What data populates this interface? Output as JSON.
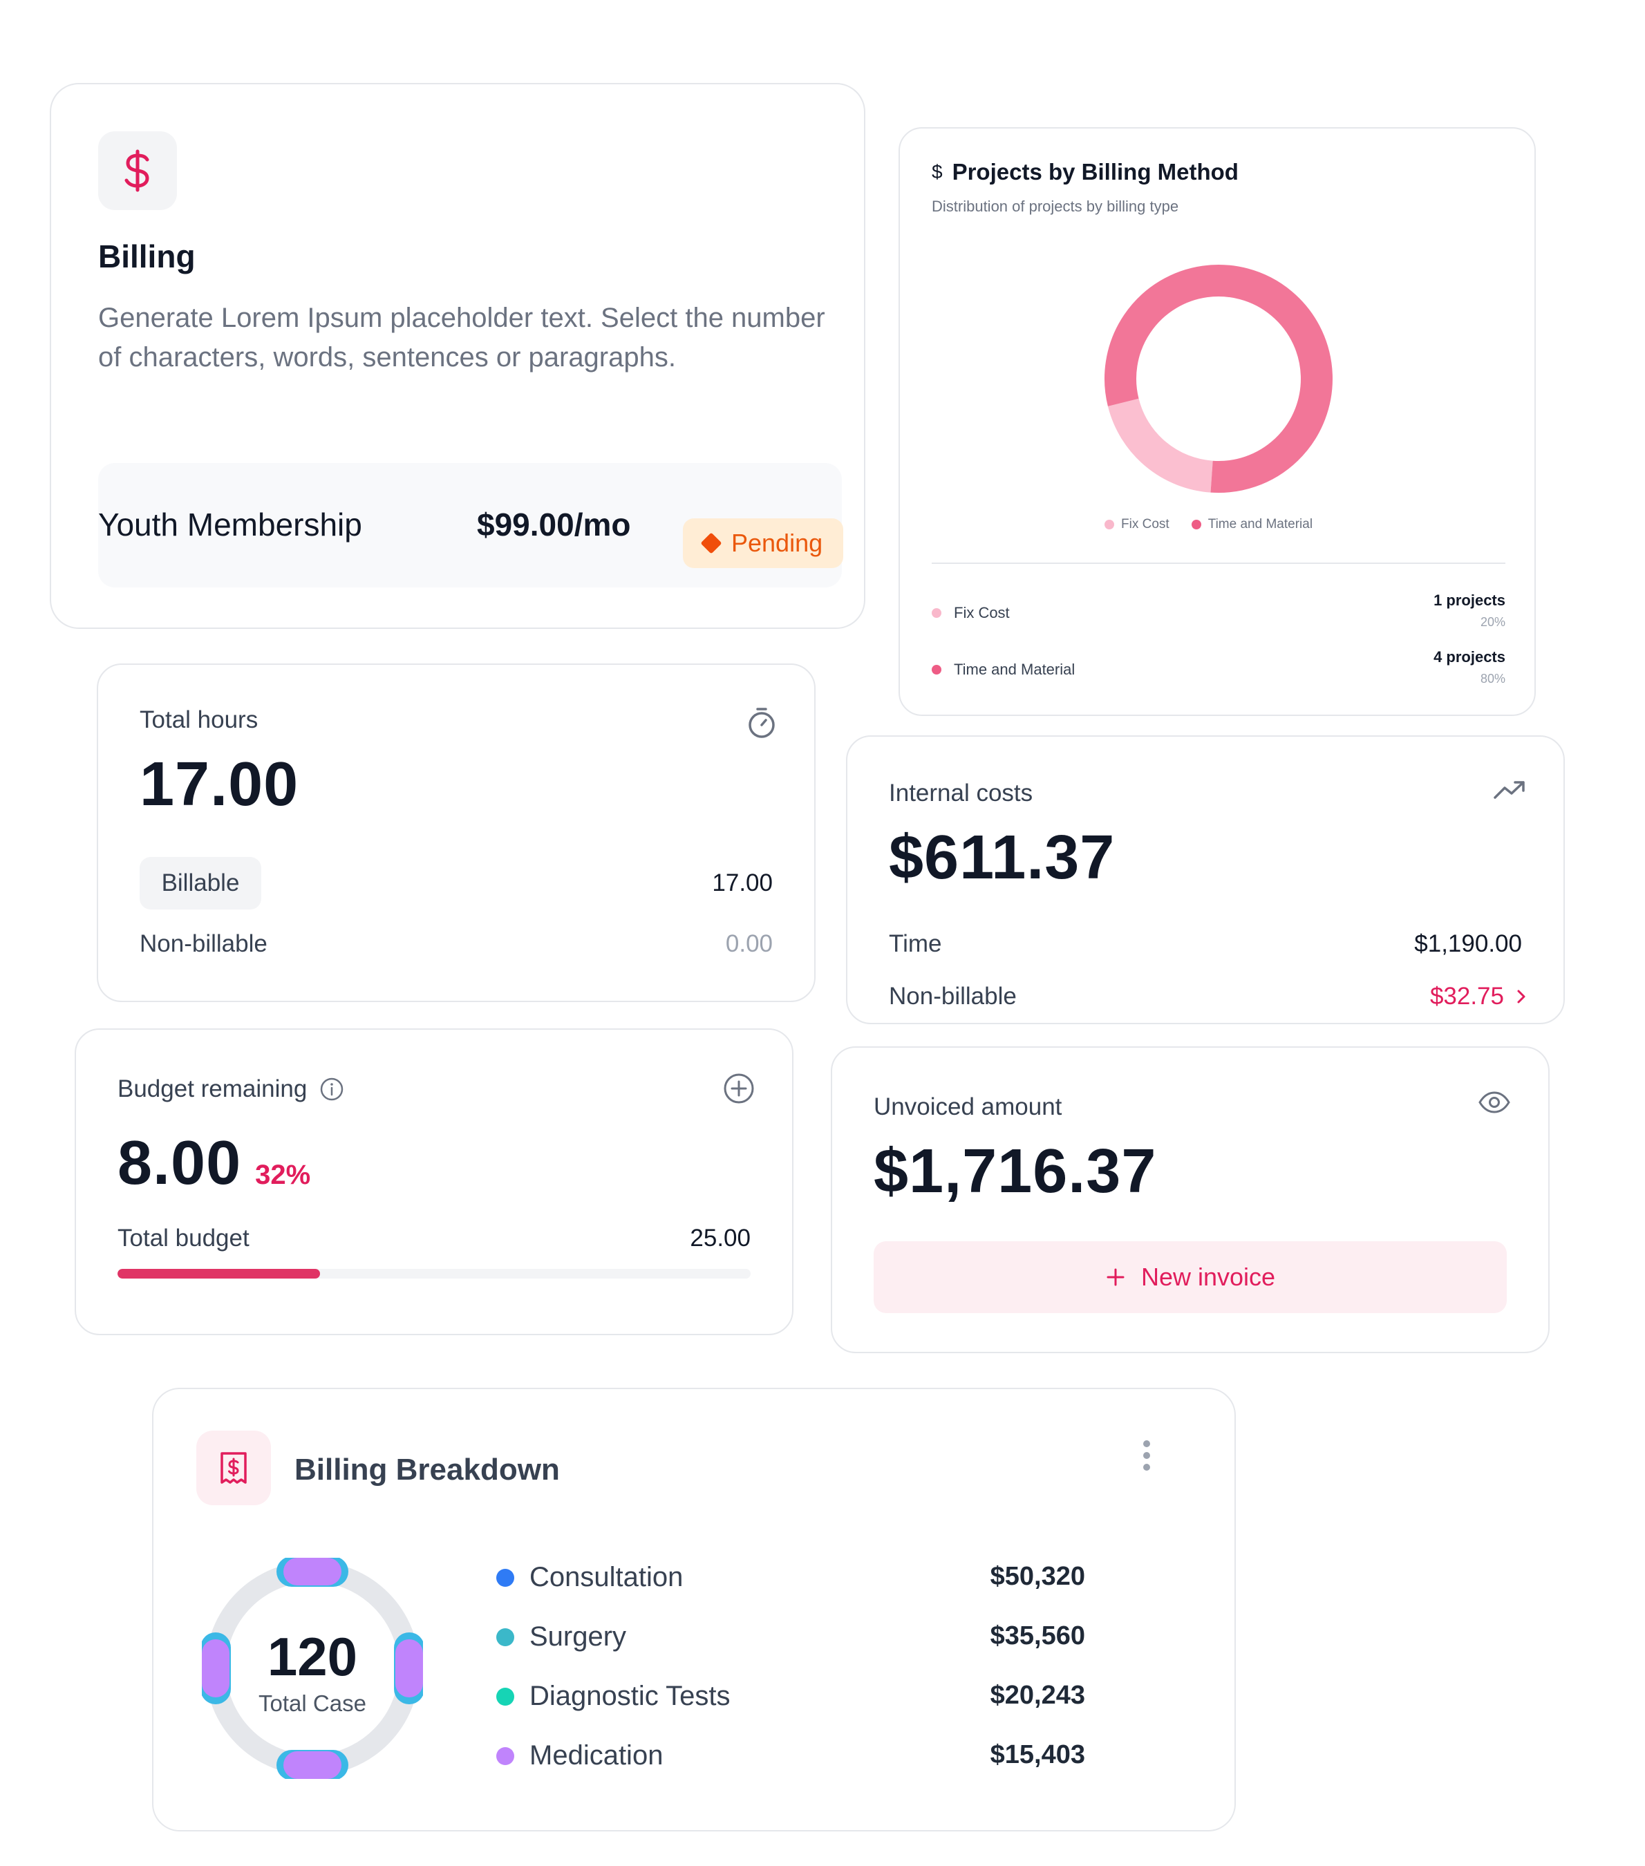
{
  "billing": {
    "title": "Billing",
    "description": "Generate Lorem Ipsum placeholder text. Select the number of characters, words, sentences or paragraphs.",
    "plan_name": "Youth Membership",
    "plan_price": "$99.00/mo",
    "status": "Pending",
    "icon": "dollar-icon"
  },
  "projects": {
    "title": "Projects by Billing Method",
    "subtitle": "Distribution of projects by billing type",
    "legend": [
      "Fix Cost",
      "Time and Material"
    ],
    "rows": [
      {
        "label": "Fix Cost",
        "count": "1 projects",
        "pct": "20%",
        "color": "#f9b8cb"
      },
      {
        "label": "Time and Material",
        "count": "4 projects",
        "pct": "80%",
        "color": "#f27698"
      }
    ]
  },
  "chart_data": {
    "type": "pie",
    "title": "Projects by Billing Method",
    "categories": [
      "Fix Cost",
      "Time and Material"
    ],
    "values": [
      1,
      4
    ],
    "percentages": [
      20,
      80
    ],
    "colors": [
      "#fbbfd0",
      "#f27698"
    ]
  },
  "hours": {
    "label": "Total hours",
    "value": "17.00",
    "billable_label": "Billable",
    "billable_value": "17.00",
    "nonbillable_label": "Non-billable",
    "nonbillable_value": "0.00",
    "icon": "stopwatch-icon"
  },
  "costs": {
    "label": "Internal costs",
    "value": "$611.37",
    "time_label": "Time",
    "time_value": "$1,190.00",
    "nonbillable_label": "Non-billable",
    "nonbillable_value": "$32.75",
    "icon": "trending-up-icon"
  },
  "budget": {
    "label": "Budget remaining",
    "value": "8.00",
    "percent": "32%",
    "total_label": "Total budget",
    "total_value": "25.00",
    "progress_fraction": 0.32,
    "icon": "plus-circle-icon"
  },
  "unvoiced": {
    "label": "Unvoiced amount",
    "value": "$1,716.37",
    "button": "New invoice",
    "icon": "eye-icon"
  },
  "breakdown": {
    "title": "Billing Breakdown",
    "total_value": "120",
    "total_label": "Total Case",
    "items": [
      {
        "name": "Consultation",
        "amount": "$50,320",
        "color": "#2f7bf5"
      },
      {
        "name": "Surgery",
        "amount": "$35,560",
        "color": "#3bb8c9"
      },
      {
        "name": "Diagnostic Tests",
        "amount": "$20,243",
        "color": "#16d4b5"
      },
      {
        "name": "Medication",
        "amount": "$15,403",
        "color": "#c084fc"
      }
    ]
  },
  "colors": {
    "accent": "#e11d5c",
    "pending_bg": "#ffedd5",
    "pending_fg": "#ea580c"
  }
}
